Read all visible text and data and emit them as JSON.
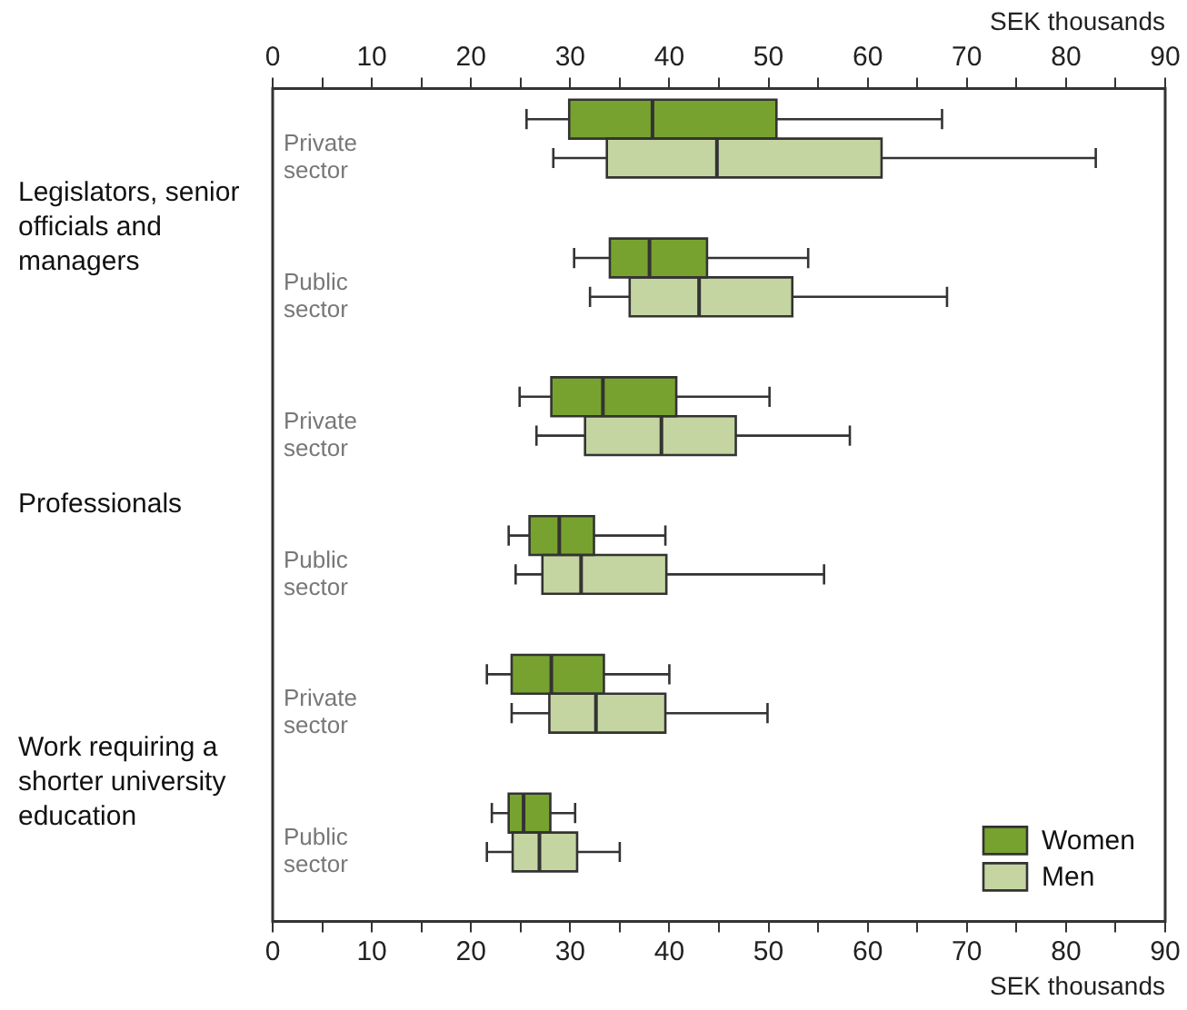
{
  "chart_data": {
    "type": "box",
    "orientation": "horizontal",
    "xlabel": "SEK thousands",
    "x2label": "SEK thousands",
    "categories": [
      "Private sector",
      "Public sector",
      "Private sector",
      "Public sector",
      "Private sector",
      "Public sector"
    ],
    "annotations": [
      "Legislators, senior officials and managers",
      "Professionals",
      "Work requiring a shorter university education"
    ],
    "xlim": [
      0,
      90
    ],
    "xticks": [
      0,
      {
        "value": 5,
        "label": null
      },
      10,
      {
        "value": 15,
        "label": null
      },
      20,
      {
        "value": 25,
        "label": null
      },
      30,
      {
        "value": 35,
        "label": null
      },
      40,
      {
        "value": 45,
        "label": null
      },
      50,
      {
        "value": 55,
        "label": null
      },
      60,
      {
        "value": 65,
        "label": null
      },
      70,
      {
        "value": 75,
        "label": null
      },
      80,
      {
        "value": 85,
        "label": null
      },
      90
    ],
    "x2lim": [
      0,
      90
    ],
    "x2ticks": [
      0,
      {
        "value": 5,
        "label": null
      },
      10,
      {
        "value": 15,
        "label": null
      },
      20,
      {
        "value": 25,
        "label": null
      },
      30,
      {
        "value": 35,
        "label": null
      },
      40,
      {
        "value": 45,
        "label": null
      },
      50,
      {
        "value": 55,
        "label": null
      },
      60,
      {
        "value": 65,
        "label": null
      },
      70,
      {
        "value": 75,
        "label": null
      },
      80,
      {
        "value": 85,
        "label": null
      },
      90
    ],
    "grid": false,
    "legend": "bottom right",
    "series": [
      {
        "name": "Women",
        "color": "#78a22f",
        "boxes": [
          {
            "low": 25.6,
            "q1": 29.9,
            "median": 38.3,
            "q3": 50.8,
            "high": 67.5
          },
          {
            "low": 30.4,
            "q1": 34.0,
            "median": 38.0,
            "q3": 43.8,
            "high": 54.0
          },
          {
            "low": 24.9,
            "q1": 28.1,
            "median": 33.3,
            "q3": 40.7,
            "high": 50.1
          },
          {
            "low": 23.8,
            "q1": 25.9,
            "median": 28.9,
            "q3": 32.4,
            "high": 39.6
          },
          {
            "low": 21.6,
            "q1": 24.1,
            "median": 28.1,
            "q3": 33.4,
            "high": 40.0
          },
          {
            "low": 22.1,
            "q1": 23.8,
            "median": 25.3,
            "q3": 28.0,
            "high": 30.5
          }
        ]
      },
      {
        "name": "Men",
        "color": "#c5d5a2",
        "boxes": [
          {
            "low": 28.3,
            "q1": 33.7,
            "median": 44.8,
            "q3": 61.4,
            "high": 83.0
          },
          {
            "low": 32.0,
            "q1": 36.0,
            "median": 43.0,
            "q3": 52.4,
            "high": 68.0
          },
          {
            "low": 26.6,
            "q1": 31.5,
            "median": 39.2,
            "q3": 46.7,
            "high": 58.2
          },
          {
            "low": 24.5,
            "q1": 27.2,
            "median": 31.1,
            "q3": 39.7,
            "high": 55.6
          },
          {
            "low": 24.1,
            "q1": 27.9,
            "median": 32.6,
            "q3": 39.6,
            "high": 49.9
          },
          {
            "low": 21.6,
            "q1": 24.2,
            "median": 26.9,
            "q3": 30.7,
            "high": 35.0
          }
        ]
      }
    ]
  }
}
